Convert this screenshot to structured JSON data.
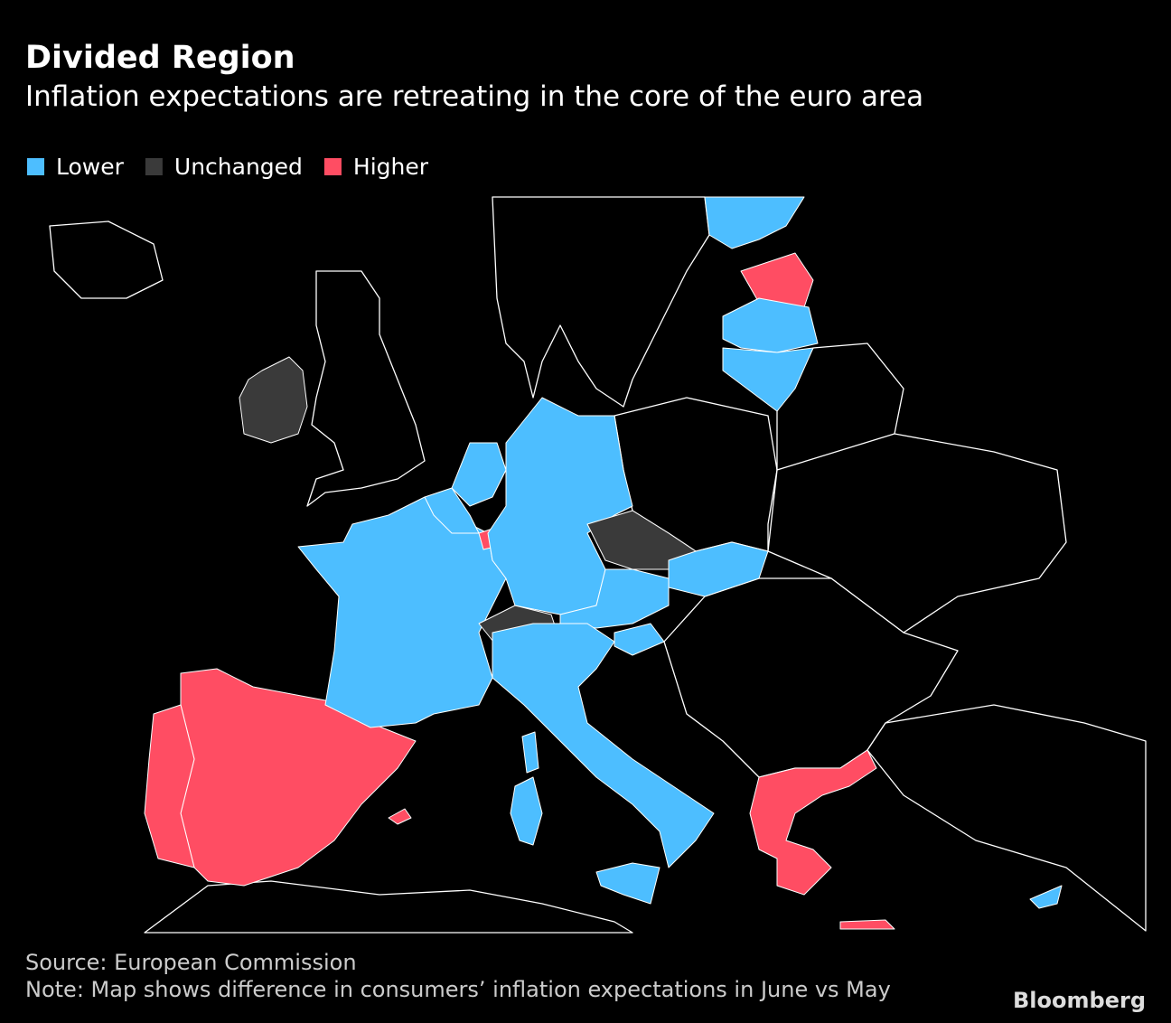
{
  "header": {
    "title": "Divided Region",
    "subtitle": "Inflation expectations are retreating in the core of the euro area"
  },
  "legend": [
    {
      "label": "Lower",
      "color": "#4dbeff"
    },
    {
      "label": "Unchanged",
      "color": "#3a3a3a"
    },
    {
      "label": "Higher",
      "color": "#ff4d63"
    }
  ],
  "footer": {
    "source": "Source: European Commission",
    "note": "Note: Map shows difference in consumers’ inflation expectations in June vs May",
    "brand": "Bloomberg"
  }
}
